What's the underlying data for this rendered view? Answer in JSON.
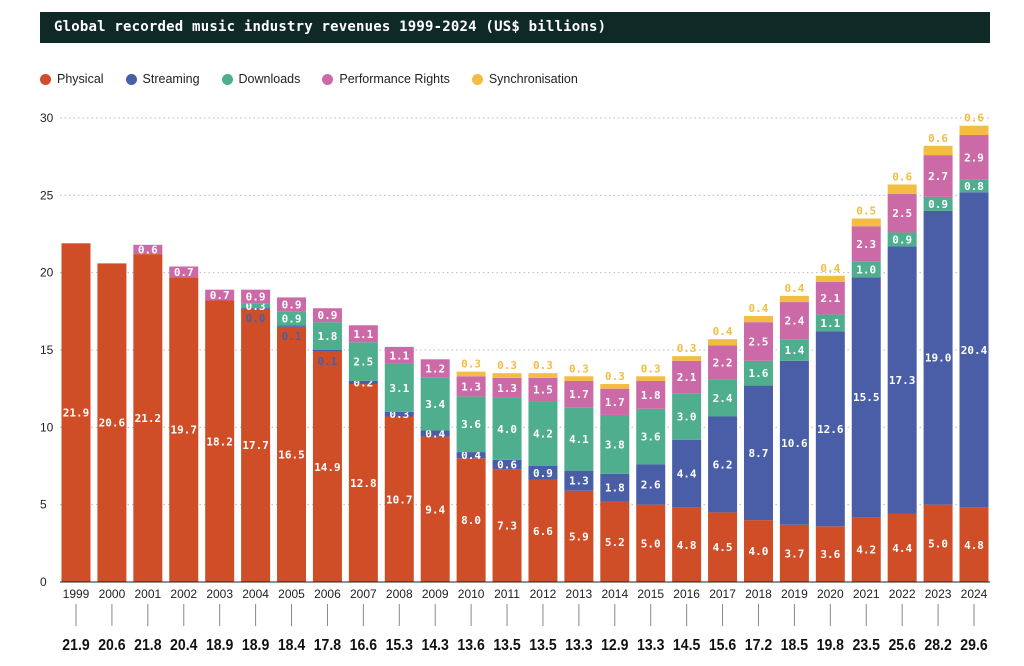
{
  "chart_data": {
    "type": "bar",
    "stacked": true,
    "title": "Global recorded music industry revenues 1999-2024 (US$ billions)",
    "xlabel": "",
    "ylabel": "",
    "ylim": [
      0,
      30
    ],
    "yticks": [
      0,
      5,
      10,
      15,
      20,
      25,
      30
    ],
    "grid": true,
    "legend_position": "top-left",
    "categories": [
      "1999",
      "2000",
      "2001",
      "2002",
      "2003",
      "2004",
      "2005",
      "2006",
      "2007",
      "2008",
      "2009",
      "2010",
      "2011",
      "2012",
      "2013",
      "2014",
      "2015",
      "2016",
      "2017",
      "2018",
      "2019",
      "2020",
      "2021",
      "2022",
      "2023",
      "2024"
    ],
    "series": [
      {
        "name": "Physical",
        "color": "#d04e27",
        "values": [
          21.9,
          20.6,
          21.2,
          19.7,
          18.2,
          17.7,
          16.5,
          14.9,
          12.8,
          10.7,
          9.4,
          8.0,
          7.3,
          6.6,
          5.9,
          5.2,
          5.0,
          4.8,
          4.5,
          4.0,
          3.7,
          3.6,
          4.2,
          4.4,
          5.0,
          4.8
        ]
      },
      {
        "name": "Streaming",
        "color": "#4a5ea8",
        "values": [
          null,
          null,
          null,
          null,
          null,
          0.0,
          0.1,
          0.1,
          0.2,
          0.3,
          0.4,
          0.4,
          0.6,
          0.9,
          1.3,
          1.8,
          2.6,
          4.4,
          6.2,
          8.7,
          10.6,
          12.6,
          15.5,
          17.3,
          19.0,
          20.4
        ]
      },
      {
        "name": "Downloads",
        "color": "#4fae8e",
        "values": [
          null,
          null,
          null,
          null,
          null,
          0.3,
          0.9,
          1.8,
          2.5,
          3.1,
          3.4,
          3.6,
          4.0,
          4.2,
          4.1,
          3.8,
          3.6,
          3.0,
          2.4,
          1.6,
          1.4,
          1.1,
          1.0,
          0.9,
          0.9,
          0.8
        ]
      },
      {
        "name": "Performance Rights",
        "color": "#cc6aa8",
        "values": [
          null,
          null,
          0.6,
          0.7,
          0.7,
          0.9,
          0.9,
          0.9,
          1.1,
          1.1,
          1.2,
          1.3,
          1.3,
          1.5,
          1.7,
          1.7,
          1.8,
          2.1,
          2.2,
          2.5,
          2.4,
          2.1,
          2.3,
          2.5,
          2.7,
          2.9
        ]
      },
      {
        "name": "Synchronisation",
        "color": "#f2bd41",
        "values": [
          null,
          null,
          null,
          null,
          null,
          null,
          null,
          null,
          null,
          null,
          null,
          0.3,
          0.3,
          0.3,
          0.3,
          0.3,
          0.3,
          0.3,
          0.4,
          0.4,
          0.4,
          0.4,
          0.5,
          0.6,
          0.6,
          0.6
        ]
      }
    ],
    "totals": [
      "21.9",
      "20.6",
      "21.8",
      "20.4",
      "18.9",
      "18.9",
      "18.4",
      "17.8",
      "16.6",
      "15.3",
      "14.3",
      "13.6",
      "13.5",
      "13.5",
      "13.3",
      "12.9",
      "13.3",
      "14.5",
      "15.6",
      "17.2",
      "18.5",
      "19.8",
      "23.5",
      "25.6",
      "28.2",
      "29.6"
    ]
  }
}
